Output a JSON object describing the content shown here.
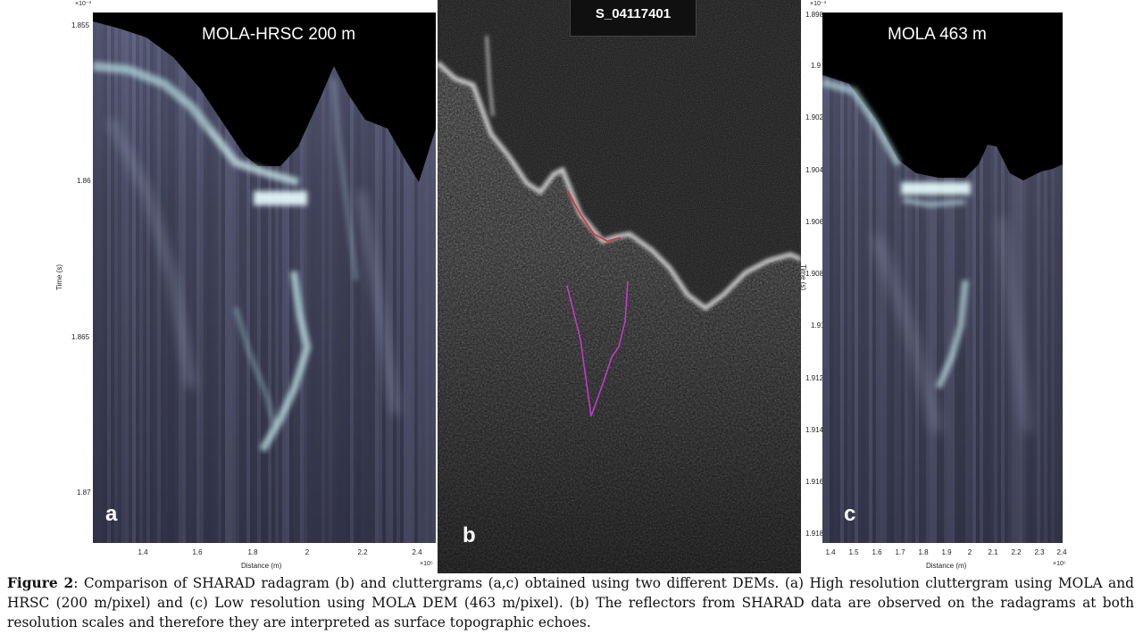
{
  "figure": {
    "panel_a": {
      "title": "MOLA-HRSC 200 m",
      "letter": "a",
      "y_exponent": "×10⁻³",
      "y_ticks": [
        "1.855",
        "1.86",
        "1.865",
        "1.87"
      ],
      "x_ticks": [
        "1.4",
        "1.6",
        "1.8",
        "2",
        "2.2",
        "2.4"
      ],
      "x_exponent": "×10⁵",
      "ylabel": "Time (s)",
      "xlabel": "Distance (m)"
    },
    "panel_b": {
      "title": "S_04117401",
      "letter": "b"
    },
    "panel_c": {
      "title": "MOLA 463 m",
      "letter": "c",
      "y_exponent": "×10⁻³",
      "y_ticks": [
        "1.898",
        "1.9",
        "1.902",
        "1.904",
        "1.906",
        "1.908",
        "1.91",
        "1.912",
        "1.914",
        "1.916",
        "1.918"
      ],
      "x_ticks": [
        "1.4",
        "1.5",
        "1.6",
        "1.7",
        "1.8",
        "1.9",
        "2",
        "2.1",
        "2.2",
        "2.3",
        "2.4"
      ],
      "x_exponent": "×10⁵",
      "ylabel": "Time (s)",
      "xlabel": "Distance (m)"
    }
  },
  "caption": {
    "label": "Figure 2",
    "text": ": Comparison of SHARAD radagram (b) and cluttergrams (a,c) obtained using two different DEMs. (a) High resolution cluttergram using MOLA and HRSC (200 m/pixel) and (c) Low resolution using MOLA DEM (463 m/pixel). (b) The reflectors from SHARAD data are observed on the radagrams at both resolution scales and therefore they are interpreted as surface topographic echoes."
  },
  "colors": {
    "cluttergram_base": "#3d3f55",
    "sky": "#000000",
    "radargram_bg": "#121212",
    "trace_red": "#e0303a",
    "trace_magenta": "#c03ac8"
  }
}
